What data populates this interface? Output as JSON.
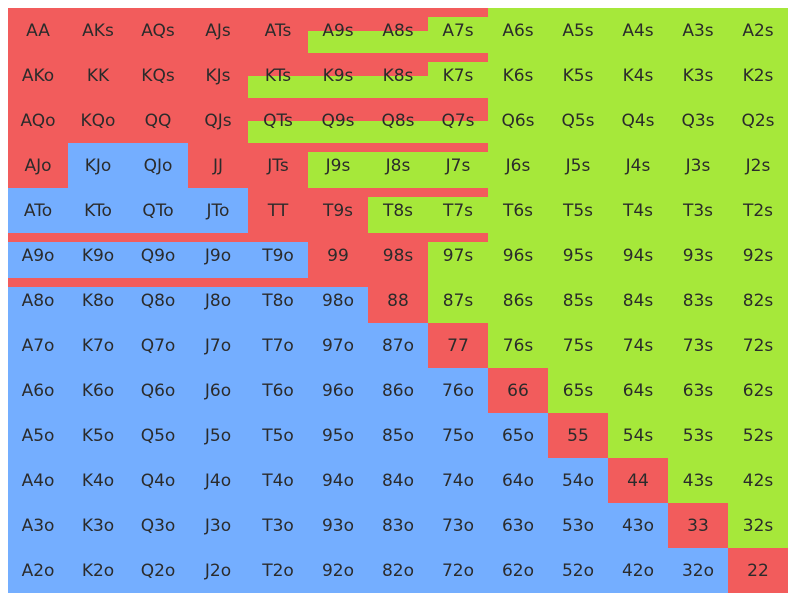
{
  "colors": {
    "raise": "#f25c5c",
    "call": "#a6e83a",
    "fold": "#74aeff"
  },
  "hands": [
    [
      "AA",
      "AKs",
      "AQs",
      "AJs",
      "ATs",
      "A9s",
      "A8s",
      "A7s",
      "A6s",
      "A5s",
      "A4s",
      "A3s",
      "A2s"
    ],
    [
      "AKo",
      "KK",
      "KQs",
      "KJs",
      "KTs",
      "K9s",
      "K8s",
      "K7s",
      "K6s",
      "K5s",
      "K4s",
      "K3s",
      "K2s"
    ],
    [
      "AQo",
      "KQo",
      "QQ",
      "QJs",
      "QTs",
      "Q9s",
      "Q8s",
      "Q7s",
      "Q6s",
      "Q5s",
      "Q4s",
      "Q3s",
      "Q2s"
    ],
    [
      "AJo",
      "KJo",
      "QJo",
      "JJ",
      "JTs",
      "J9s",
      "J8s",
      "J7s",
      "J6s",
      "J5s",
      "J4s",
      "J3s",
      "J2s"
    ],
    [
      "ATo",
      "KTo",
      "QTo",
      "JTo",
      "TT",
      "T9s",
      "T8s",
      "T7s",
      "T6s",
      "T5s",
      "T4s",
      "T3s",
      "T2s"
    ],
    [
      "A9o",
      "K9o",
      "Q9o",
      "J9o",
      "T9o",
      "99",
      "98s",
      "97s",
      "96s",
      "95s",
      "94s",
      "93s",
      "92s"
    ],
    [
      "A8o",
      "K8o",
      "Q8o",
      "J8o",
      "T8o",
      "98o",
      "88",
      "87s",
      "86s",
      "85s",
      "84s",
      "83s",
      "82s"
    ],
    [
      "A7o",
      "K7o",
      "Q7o",
      "J7o",
      "T7o",
      "97o",
      "87o",
      "77",
      "76s",
      "75s",
      "74s",
      "73s",
      "72s"
    ],
    [
      "A6o",
      "K6o",
      "Q6o",
      "J6o",
      "T6o",
      "96o",
      "86o",
      "76o",
      "66",
      "65s",
      "64s",
      "63s",
      "62s"
    ],
    [
      "A5o",
      "K5o",
      "Q5o",
      "J5o",
      "T5o",
      "95o",
      "85o",
      "75o",
      "65o",
      "55",
      "54s",
      "53s",
      "52s"
    ],
    [
      "A4o",
      "K4o",
      "Q4o",
      "J4o",
      "T4o",
      "94o",
      "84o",
      "74o",
      "64o",
      "54o",
      "44",
      "43s",
      "42s"
    ],
    [
      "A3o",
      "K3o",
      "Q3o",
      "J3o",
      "T3o",
      "93o",
      "83o",
      "73o",
      "63o",
      "53o",
      "43o",
      "33",
      "32s"
    ],
    [
      "A2o",
      "K2o",
      "Q2o",
      "J2o",
      "T2o",
      "92o",
      "82o",
      "72o",
      "62o",
      "52o",
      "42o",
      "32o",
      "22"
    ]
  ],
  "mix": [
    [
      [
        1
      ],
      [
        1
      ],
      [
        1
      ],
      [
        1
      ],
      [
        1
      ],
      [
        0.5,
        0.5,
        0
      ],
      [
        0.5,
        0.5,
        0
      ],
      [
        0.2,
        0.8,
        0
      ],
      [
        0,
        1,
        0
      ],
      [
        0,
        1,
        0
      ],
      [
        0,
        1,
        0
      ],
      [
        0,
        1,
        0
      ],
      [
        0,
        1,
        0
      ]
    ],
    [
      [
        1
      ],
      [
        1
      ],
      [
        1
      ],
      [
        1
      ],
      [
        0.5,
        0.5,
        0
      ],
      [
        0.5,
        0.5,
        0
      ],
      [
        0.5,
        0.5,
        0
      ],
      [
        0.2,
        0.8,
        0
      ],
      [
        0,
        1,
        0
      ],
      [
        0,
        1,
        0
      ],
      [
        0,
        1,
        0
      ],
      [
        0,
        1,
        0
      ],
      [
        0,
        1,
        0
      ]
    ],
    [
      [
        1
      ],
      [
        1
      ],
      [
        1
      ],
      [
        1
      ],
      [
        0.5,
        0.5,
        0
      ],
      [
        0.5,
        0.5,
        0
      ],
      [
        0.5,
        0.5,
        0
      ],
      [
        0.5,
        0.5,
        0
      ],
      [
        0,
        1,
        0
      ],
      [
        0,
        1,
        0
      ],
      [
        0,
        1,
        0
      ],
      [
        0,
        1,
        0
      ],
      [
        0,
        1,
        0
      ]
    ],
    [
      [
        1
      ],
      [
        0,
        0,
        1
      ],
      [
        0,
        0,
        1
      ],
      [
        1
      ],
      [
        1
      ],
      [
        0.2,
        0.8,
        0
      ],
      [
        0.2,
        0.8,
        0
      ],
      [
        0.2,
        0.8,
        0
      ],
      [
        0,
        1,
        0
      ],
      [
        0,
        1,
        0
      ],
      [
        0,
        1,
        0
      ],
      [
        0,
        1,
        0
      ],
      [
        0,
        1,
        0
      ]
    ],
    [
      [
        0,
        0,
        1
      ],
      [
        0,
        0,
        1
      ],
      [
        0,
        0,
        1
      ],
      [
        0,
        0,
        1
      ],
      [
        1
      ],
      [
        1
      ],
      [
        0.2,
        0.8,
        0
      ],
      [
        0.2,
        0.8,
        0
      ],
      [
        0,
        1,
        0
      ],
      [
        0,
        1,
        0
      ],
      [
        0,
        1,
        0
      ],
      [
        0,
        1,
        0
      ],
      [
        0,
        1,
        0
      ]
    ],
    [
      [
        0.2,
        0,
        0.8
      ],
      [
        0.2,
        0,
        0.8
      ],
      [
        0.2,
        0,
        0.8
      ],
      [
        0.2,
        0,
        0.8
      ],
      [
        0.2,
        0,
        0.8
      ],
      [
        1
      ],
      [
        1
      ],
      [
        0.2,
        0.8,
        0
      ],
      [
        0,
        1,
        0
      ],
      [
        0,
        1,
        0
      ],
      [
        0,
        1,
        0
      ],
      [
        0,
        1,
        0
      ],
      [
        0,
        1,
        0
      ]
    ],
    [
      [
        0.2,
        0,
        0.8
      ],
      [
        0.2,
        0,
        0.8
      ],
      [
        0.2,
        0,
        0.8
      ],
      [
        0.2,
        0,
        0.8
      ],
      [
        0.2,
        0,
        0.8
      ],
      [
        0.2,
        0,
        0.8
      ],
      [
        1
      ],
      [
        0,
        1,
        0
      ],
      [
        0,
        1,
        0
      ],
      [
        0,
        1,
        0
      ],
      [
        0,
        1,
        0
      ],
      [
        0,
        1,
        0
      ],
      [
        0,
        1,
        0
      ]
    ],
    [
      [
        0,
        0,
        1
      ],
      [
        0,
        0,
        1
      ],
      [
        0,
        0,
        1
      ],
      [
        0,
        0,
        1
      ],
      [
        0,
        0,
        1
      ],
      [
        0,
        0,
        1
      ],
      [
        0,
        0,
        1
      ],
      [
        1
      ],
      [
        0,
        1,
        0
      ],
      [
        0,
        1,
        0
      ],
      [
        0,
        1,
        0
      ],
      [
        0,
        1,
        0
      ],
      [
        0,
        1,
        0
      ]
    ],
    [
      [
        0,
        0,
        1
      ],
      [
        0,
        0,
        1
      ],
      [
        0,
        0,
        1
      ],
      [
        0,
        0,
        1
      ],
      [
        0,
        0,
        1
      ],
      [
        0,
        0,
        1
      ],
      [
        0,
        0,
        1
      ],
      [
        0,
        0,
        1
      ],
      [
        1
      ],
      [
        0,
        1,
        0
      ],
      [
        0,
        1,
        0
      ],
      [
        0,
        1,
        0
      ],
      [
        0,
        1,
        0
      ]
    ],
    [
      [
        0,
        0,
        1
      ],
      [
        0,
        0,
        1
      ],
      [
        0,
        0,
        1
      ],
      [
        0,
        0,
        1
      ],
      [
        0,
        0,
        1
      ],
      [
        0,
        0,
        1
      ],
      [
        0,
        0,
        1
      ],
      [
        0,
        0,
        1
      ],
      [
        0,
        0,
        1
      ],
      [
        1
      ],
      [
        0,
        1,
        0
      ],
      [
        0,
        1,
        0
      ],
      [
        0,
        1,
        0
      ]
    ],
    [
      [
        0,
        0,
        1
      ],
      [
        0,
        0,
        1
      ],
      [
        0,
        0,
        1
      ],
      [
        0,
        0,
        1
      ],
      [
        0,
        0,
        1
      ],
      [
        0,
        0,
        1
      ],
      [
        0,
        0,
        1
      ],
      [
        0,
        0,
        1
      ],
      [
        0,
        0,
        1
      ],
      [
        0,
        0,
        1
      ],
      [
        1
      ],
      [
        0,
        1,
        0
      ],
      [
        0,
        1,
        0
      ]
    ],
    [
      [
        0,
        0,
        1
      ],
      [
        0,
        0,
        1
      ],
      [
        0,
        0,
        1
      ],
      [
        0,
        0,
        1
      ],
      [
        0,
        0,
        1
      ],
      [
        0,
        0,
        1
      ],
      [
        0,
        0,
        1
      ],
      [
        0,
        0,
        1
      ],
      [
        0,
        0,
        1
      ],
      [
        0,
        0,
        1
      ],
      [
        0,
        0,
        1
      ],
      [
        1
      ],
      [
        0,
        1,
        0
      ]
    ],
    [
      [
        0,
        0,
        1
      ],
      [
        0,
        0,
        1
      ],
      [
        0,
        0,
        1
      ],
      [
        0,
        0,
        1
      ],
      [
        0,
        0,
        1
      ],
      [
        0,
        0,
        1
      ],
      [
        0,
        0,
        1
      ],
      [
        0,
        0,
        1
      ],
      [
        0,
        0,
        1
      ],
      [
        0,
        0,
        1
      ],
      [
        0,
        0,
        1
      ],
      [
        0,
        0,
        1
      ],
      [
        1
      ]
    ]
  ]
}
